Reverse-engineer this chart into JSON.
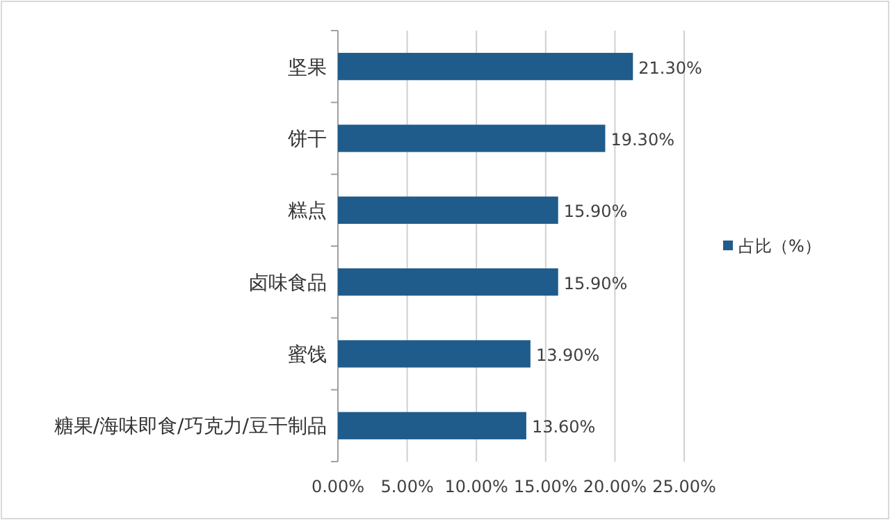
{
  "chart_data": {
    "type": "bar",
    "orientation": "horizontal",
    "categories": [
      "坚果",
      "饼干",
      "糕点",
      "卤味食品",
      "蜜饯",
      "糖果/海味即食/巧克力/豆干制品"
    ],
    "series": [
      {
        "name": "占比（%）",
        "color": "#1f5c8b",
        "values": [
          21.3,
          19.3,
          15.9,
          15.9,
          13.9,
          13.6
        ],
        "value_labels": [
          "21.30%",
          "19.30%",
          "15.90%",
          "15.90%",
          "13.90%",
          "13.60%"
        ]
      }
    ],
    "xlim": [
      0,
      25
    ],
    "xticks": [
      {
        "value": 0,
        "label": "0.00%"
      },
      {
        "value": 5,
        "label": "5.00%"
      },
      {
        "value": 10,
        "label": "10.00%"
      },
      {
        "value": 15,
        "label": "15.00%"
      },
      {
        "value": 20,
        "label": "20.00%"
      },
      {
        "value": 25,
        "label": "25.00%"
      }
    ],
    "grid": "x",
    "legend": "right"
  }
}
